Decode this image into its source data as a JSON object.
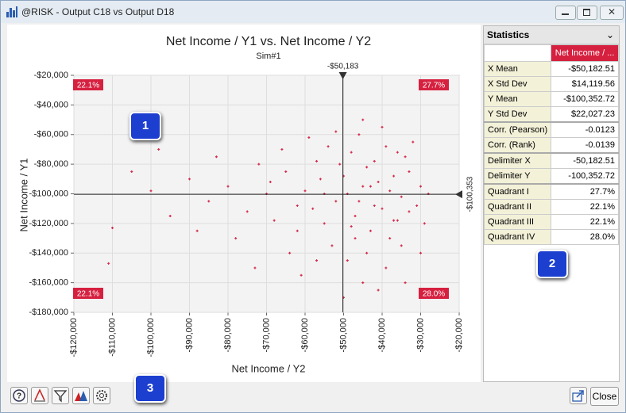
{
  "window": {
    "title": "@RISK - Output C18 vs Output D18",
    "close": "Close"
  },
  "callouts": [
    "1",
    "2",
    "3"
  ],
  "statistics": {
    "title": "Statistics",
    "column": "Net Income / ...",
    "rows": [
      [
        "X Mean",
        "-$50,182.51"
      ],
      [
        "X Std Dev",
        "$14,119.56"
      ],
      [
        "Y Mean",
        "-$100,352.72"
      ],
      [
        "Y Std Dev",
        "$22,027.23"
      ],
      [
        "Corr. (Pearson)",
        "-0.0123"
      ],
      [
        "Corr. (Rank)",
        "-0.0139"
      ],
      [
        "Delimiter X",
        "-50,182.51"
      ],
      [
        "Delimiter Y",
        "-100,352.72"
      ],
      [
        "Quadrant I",
        "27.7%"
      ],
      [
        "Quadrant II",
        "22.1%"
      ],
      [
        "Quadrant III",
        "22.1%"
      ],
      [
        "Quadrant IV",
        "28.0%"
      ]
    ]
  },
  "chart_data": {
    "type": "scatter",
    "title": "Net Income / Y1 vs. Net Income / Y2",
    "subtitle": "Sim#1",
    "x_label": "Net Income / Y2",
    "y_label": "Net Income / Y1",
    "color": "#d42a4a",
    "grid": true,
    "xlim": [
      -120000,
      -20000
    ],
    "ylim": [
      -180000,
      -20000
    ],
    "xticks": [
      {
        "value": -120000,
        "label": "-$120,000"
      },
      {
        "value": -110000,
        "label": "-$110,000"
      },
      {
        "value": -100000,
        "label": "-$100,000"
      },
      {
        "value": -90000,
        "label": "-$90,000"
      },
      {
        "value": -80000,
        "label": "-$80,000"
      },
      {
        "value": -70000,
        "label": "-$70,000"
      },
      {
        "value": -60000,
        "label": "-$60,000"
      },
      {
        "value": -50000,
        "label": "-$50,000"
      },
      {
        "value": -40000,
        "label": "-$40,000"
      },
      {
        "value": -30000,
        "label": "-$30,000"
      },
      {
        "value": -20000,
        "label": "-$20,000"
      }
    ],
    "yticks": [
      {
        "value": -180000,
        "label": "-$180,000"
      },
      {
        "value": -160000,
        "label": "-$160,000"
      },
      {
        "value": -140000,
        "label": "-$140,000"
      },
      {
        "value": -120000,
        "label": "-$120,000"
      },
      {
        "value": -100000,
        "label": "-$100,000"
      },
      {
        "value": -80000,
        "label": "-$80,000"
      },
      {
        "value": -60000,
        "label": "-$60,000"
      },
      {
        "value": -40000,
        "label": "-$40,000"
      },
      {
        "value": -20000,
        "label": "-$20,000"
      }
    ],
    "delimiter_x": {
      "value": -50183,
      "label": "-$50,183"
    },
    "delimiter_y": {
      "value": -100353,
      "label": "-$100,353"
    },
    "quadrant_labels": {
      "top_right": "27.7%",
      "top_left": "22.1%",
      "bottom_left": "22.1%",
      "bottom_right": "28.0%"
    },
    "x": [
      -45000,
      -40000,
      -50000,
      -35000,
      -55000,
      -42000,
      -38000,
      -60000,
      -47000,
      -33000,
      -52000,
      -44000,
      -30000,
      -65000,
      -48000,
      -36000,
      -58000,
      -41000,
      -53000,
      -31000,
      -70000,
      -46000,
      -39000,
      -62000,
      -34000,
      -56000,
      -43000,
      -49000,
      -37000,
      -75000,
      -51000,
      -29000,
      -66000,
      -45000,
      -32000,
      -80000,
      -57000,
      -40000,
      -68000,
      -35000,
      -85000,
      -54000,
      -42000,
      -47000,
      -28000,
      -72000,
      -61000,
      -38000,
      -90000,
      -44000,
      -50000,
      -33000,
      -78000,
      -59000,
      -46000,
      -95000,
      -36000,
      -64000,
      -41000,
      -83000,
      -30000,
      -55000,
      -100000,
      -48000,
      -39000,
      -73000,
      -105000,
      -52000,
      -43000,
      -88000,
      -110000,
      -34000,
      -69000,
      -62000,
      -49000,
      -37000,
      -57000,
      -98000,
      -111000,
      -45000
    ],
    "y": [
      -95000,
      -110000,
      -88000,
      -102000,
      -120000,
      -78000,
      -130000,
      -98000,
      -115000,
      -85000,
      -105000,
      -140000,
      -95000,
      -85000,
      -72000,
      -118000,
      -110000,
      -92000,
      -135000,
      -108000,
      -100000,
      -60000,
      -150000,
      -125000,
      -75000,
      -90000,
      -125000,
      -100000,
      -88000,
      -112000,
      -80000,
      -120000,
      -70000,
      -160000,
      -65000,
      -95000,
      -145000,
      -55000,
      -118000,
      -135000,
      -105000,
      -68000,
      -108000,
      -130000,
      -100000,
      -80000,
      -155000,
      -98000,
      -90000,
      -82000,
      -170000,
      -112000,
      -130000,
      -62000,
      -105000,
      -115000,
      -72000,
      -140000,
      -165000,
      -75000,
      -140000,
      -100000,
      -98000,
      -122000,
      -68000,
      -150000,
      -85000,
      -58000,
      -95000,
      -125000,
      -123000,
      -160000,
      -92000,
      -108000,
      -145000,
      -118000,
      -78000,
      -70000,
      -147000,
      -50000
    ]
  }
}
